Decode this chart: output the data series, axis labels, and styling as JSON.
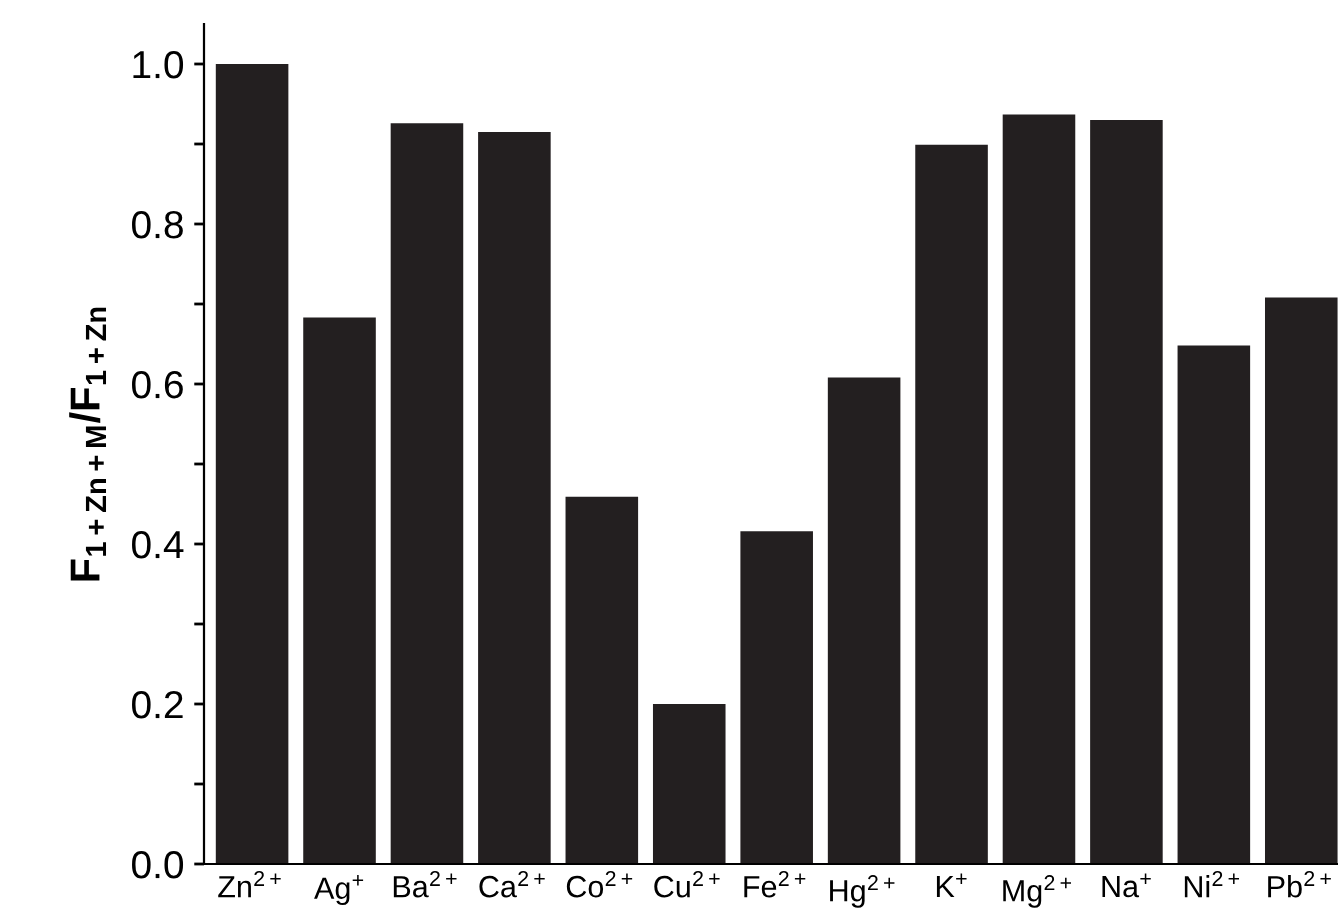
{
  "chart_data": {
    "type": "bar",
    "ylabel": "F$_{1+Zn+M}$/F$_{1+Zn}$",
    "categories": [
      "Zn$^{2+}$",
      "Ag$^{+}$",
      "Ba$^{2+}$",
      "Ca$^{2+}$",
      "Co$^{2+}$",
      "Cu$^{2+}$",
      "Fe$^{2+}$",
      "Hg$^{2+}$",
      "K$^{+}$",
      "Mg$^{2+}$",
      "Na$^{+}$",
      "Ni$^{2+}$",
      "Pb$^{2+}$"
    ],
    "values": [
      1.0,
      0.683,
      0.926,
      0.915,
      0.459,
      0.2,
      0.416,
      0.608,
      0.899,
      0.937,
      0.93,
      0.648,
      0.708
    ],
    "color": "#231f20",
    "ylim": [
      0,
      1.05
    ],
    "yticks": [
      {
        "value": 0,
        "label": "0.0"
      },
      {
        "value": 0.1,
        "label": null
      },
      {
        "value": 0.2,
        "label": "0.2"
      },
      {
        "value": 0.3,
        "label": null
      },
      {
        "value": 0.4,
        "label": "0.4"
      },
      {
        "value": 0.5,
        "label": null
      },
      {
        "value": 0.6,
        "label": "0.6"
      },
      {
        "value": 0.7,
        "label": null
      },
      {
        "value": 0.8,
        "label": "0.8"
      },
      {
        "value": 0.9,
        "label": null
      },
      {
        "value": 1,
        "label": "1.0"
      }
    ],
    "grid": false,
    "legend": false
  }
}
